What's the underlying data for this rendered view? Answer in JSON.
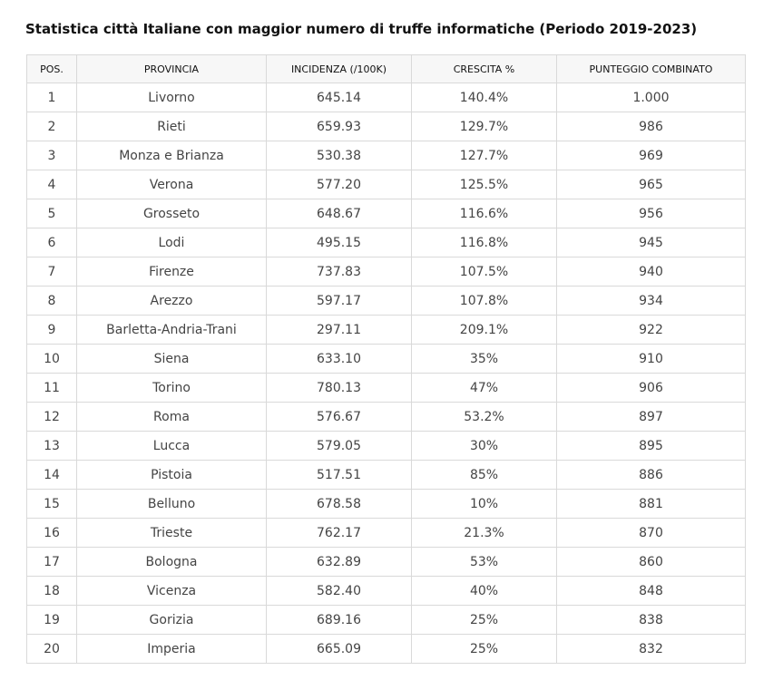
{
  "title": "Statistica città Italiane con maggior numero di truffe informatiche (Periodo 2019-2023)",
  "table": {
    "headers": [
      "POS.",
      "PROVINCIA",
      "INCIDENZA (/100K)",
      "CRESCITA %",
      "PUNTEGGIO COMBINATO"
    ],
    "rows": [
      [
        "1",
        "Livorno",
        "645.14",
        "140.4%",
        "1.000"
      ],
      [
        "2",
        "Rieti",
        "659.93",
        "129.7%",
        "986"
      ],
      [
        "3",
        "Monza e Brianza",
        "530.38",
        "127.7%",
        "969"
      ],
      [
        "4",
        "Verona",
        "577.20",
        "125.5%",
        "965"
      ],
      [
        "5",
        "Grosseto",
        "648.67",
        "116.6%",
        "956"
      ],
      [
        "6",
        "Lodi",
        "495.15",
        "116.8%",
        "945"
      ],
      [
        "7",
        "Firenze",
        "737.83",
        "107.5%",
        "940"
      ],
      [
        "8",
        "Arezzo",
        "597.17",
        "107.8%",
        "934"
      ],
      [
        "9",
        "Barletta-Andria-Trani",
        "297.11",
        "209.1%",
        "922"
      ],
      [
        "10",
        "Siena",
        "633.10",
        "35%",
        "910"
      ],
      [
        "11",
        "Torino",
        "780.13",
        "47%",
        "906"
      ],
      [
        "12",
        "Roma",
        "576.67",
        "53.2%",
        "897"
      ],
      [
        "13",
        "Lucca",
        "579.05",
        "30%",
        "895"
      ],
      [
        "14",
        "Pistoia",
        "517.51",
        "85%",
        "886"
      ],
      [
        "15",
        "Belluno",
        "678.58",
        "10%",
        "881"
      ],
      [
        "16",
        "Trieste",
        "762.17",
        "21.3%",
        "870"
      ],
      [
        "17",
        "Bologna",
        "632.89",
        "53%",
        "860"
      ],
      [
        "18",
        "Vicenza",
        "582.40",
        "40%",
        "848"
      ],
      [
        "19",
        "Gorizia",
        "689.16",
        "25%",
        "838"
      ],
      [
        "20",
        "Imperia",
        "665.09",
        "25%",
        "832"
      ]
    ]
  }
}
